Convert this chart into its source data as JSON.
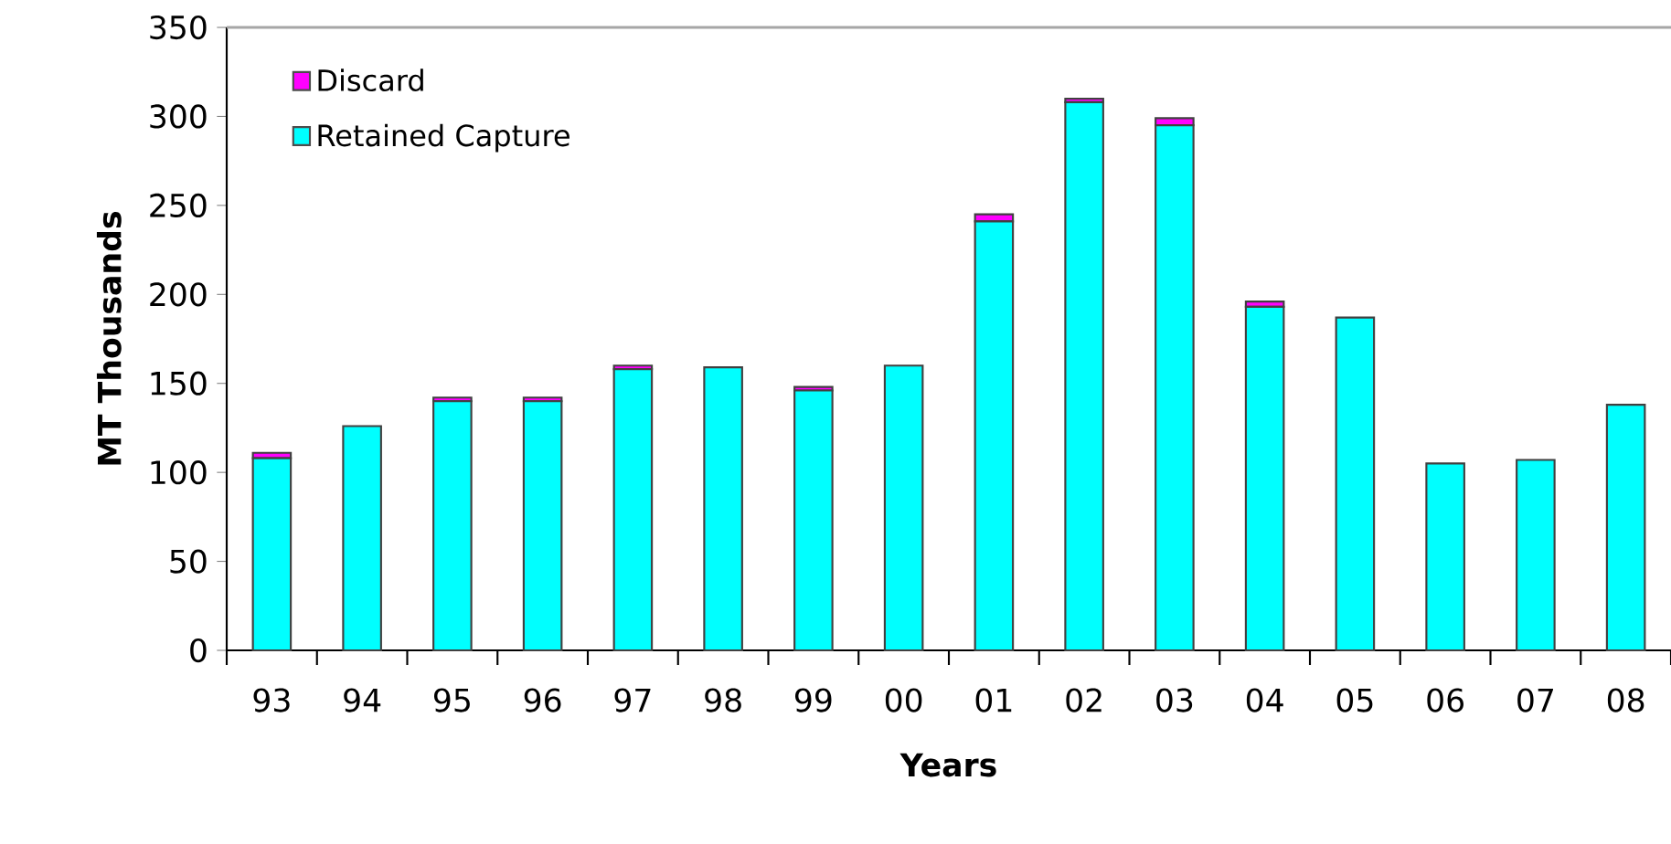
{
  "chart_data": {
    "type": "bar",
    "stacked": true,
    "xlabel": "Years",
    "ylabel": "MT Thousands",
    "categories": [
      "93",
      "94",
      "95",
      "96",
      "97",
      "98",
      "99",
      "00",
      "01",
      "02",
      "03",
      "04",
      "05",
      "06",
      "07",
      "08"
    ],
    "series": [
      {
        "name": "Retained Capture",
        "color": "#00ffff",
        "values": [
          108,
          126,
          140,
          140,
          158,
          159,
          146,
          160,
          241,
          308,
          295,
          193,
          187,
          105,
          107,
          138
        ]
      },
      {
        "name": "Discard",
        "color": "#ff00ff",
        "values": [
          3,
          0,
          2,
          2,
          2,
          0,
          2,
          0,
          4,
          2,
          4,
          3,
          0,
          0,
          0,
          0
        ]
      }
    ],
    "ylim": [
      0,
      350
    ],
    "yticks": [
      0,
      50,
      100,
      150,
      200,
      250,
      300,
      350
    ],
    "legend": "top left"
  }
}
